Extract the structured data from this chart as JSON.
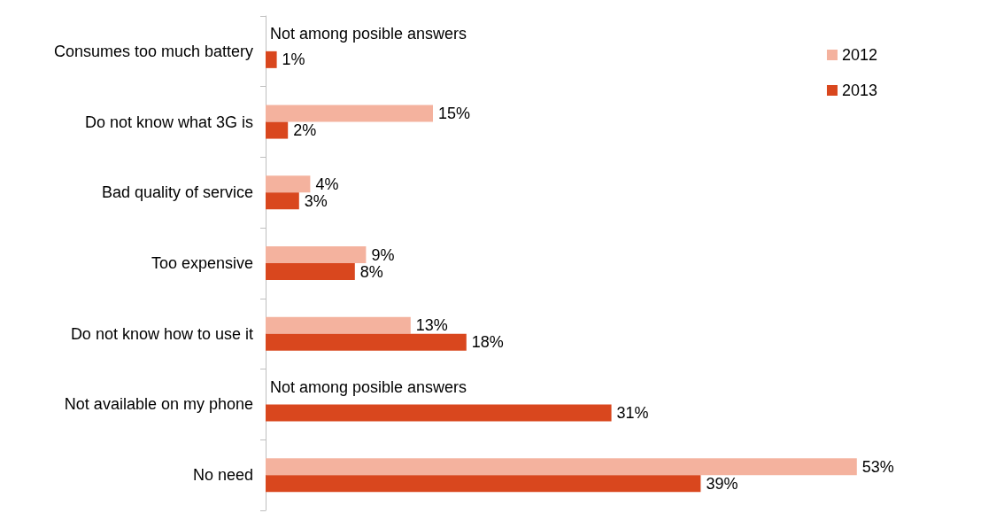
{
  "chart_data": {
    "type": "bar",
    "orientation": "horizontal",
    "categories": [
      "Consumes too much battery",
      "Do not know what 3G is",
      "Bad quality of service",
      "Too expensive",
      "Do not know how to use it",
      "Not available on my phone",
      "No need"
    ],
    "series": [
      {
        "name": "2012",
        "color": "#f4b29e",
        "values": [
          null,
          15,
          4,
          9,
          13,
          null,
          53
        ],
        "value_labels": [
          null,
          "15%",
          "4%",
          "9%",
          "13%",
          null,
          "53%"
        ]
      },
      {
        "name": "2013",
        "color": "#d9471e",
        "values": [
          1,
          2,
          3,
          8,
          18,
          31,
          39
        ],
        "value_labels": [
          "1%",
          "2%",
          "3%",
          "8%",
          "18%",
          "31%",
          "39%"
        ]
      }
    ],
    "annotations": [
      {
        "text": "Not among posible answers",
        "x": 0,
        "y": "Consumes too much battery"
      },
      {
        "text": "Not among posible answers",
        "x": 0,
        "y": "Not available on my phone"
      }
    ],
    "legend": "top right",
    "grid": false
  }
}
